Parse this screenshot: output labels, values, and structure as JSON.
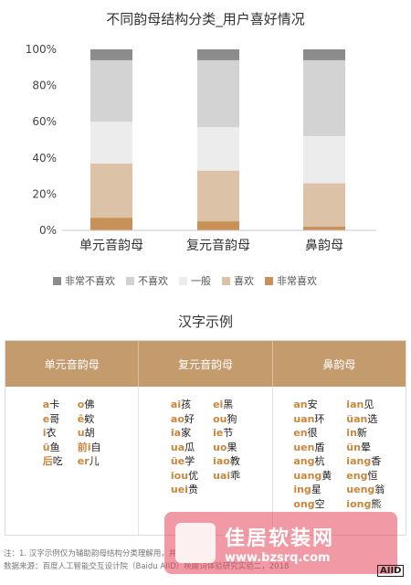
{
  "chart_data": {
    "type": "bar",
    "stacked": true,
    "title": "不同韵母结构分类_用户喜好情况",
    "categories": [
      "单元音韵母",
      "复元音韵母",
      "鼻韵母"
    ],
    "series": [
      {
        "name": "非常喜欢",
        "color": "#c79157",
        "values": [
          7,
          5,
          2
        ]
      },
      {
        "name": "喜欢",
        "color": "#dcc2a6",
        "values": [
          30,
          28,
          24
        ]
      },
      {
        "name": "一般",
        "color": "#ececec",
        "values": [
          23,
          24,
          26
        ]
      },
      {
        "name": "不喜欢",
        "color": "#d3d3d3",
        "values": [
          34,
          37,
          42
        ]
      },
      {
        "name": "非常不喜欢",
        "color": "#8c8c8c",
        "values": [
          6,
          6,
          6
        ]
      }
    ],
    "legend_order": [
      "非常不喜欢",
      "不喜欢",
      "一般",
      "喜欢",
      "非常喜欢"
    ],
    "yticks": [
      "0%",
      "20%",
      "40%",
      "60%",
      "80%",
      "100%"
    ],
    "ylim": [
      0,
      100
    ],
    "grid": false,
    "legend_position": "bottom"
  },
  "examples": {
    "title": "汉字示例",
    "headers": [
      "单元音韵母",
      "复元音韵母",
      "鼻韵母"
    ],
    "columns": [
      [
        [
          [
            "a",
            "卡"
          ],
          [
            "e",
            "哥"
          ],
          [
            "i",
            "衣"
          ],
          [
            "ü",
            "鱼"
          ],
          [
            "后",
            "吃"
          ]
        ],
        [
          [
            "o",
            "佛"
          ],
          [
            "ê",
            "欸"
          ],
          [
            "u",
            "胡"
          ],
          [
            "前i",
            "自"
          ],
          [
            "er",
            "儿"
          ]
        ]
      ],
      [
        [
          [
            "ai",
            "孩"
          ],
          [
            "ao",
            "好"
          ],
          [
            "ia",
            "家"
          ],
          [
            "ua",
            "瓜"
          ],
          [
            "üe",
            "学"
          ],
          [
            "iou",
            "优"
          ],
          [
            "uei",
            "贵"
          ]
        ],
        [
          [
            "ei",
            "黑"
          ],
          [
            "ou",
            "狗"
          ],
          [
            "ie",
            "节"
          ],
          [
            "uo",
            "果"
          ],
          [
            "iao",
            "教"
          ],
          [
            "uai",
            "乖"
          ]
        ]
      ],
      [
        [
          [
            "an",
            "安"
          ],
          [
            "uan",
            "环"
          ],
          [
            "en",
            "很"
          ],
          [
            "uen",
            "盾"
          ],
          [
            "ang",
            "杭"
          ],
          [
            "uang",
            "黄"
          ],
          [
            "ing",
            "星"
          ],
          [
            "ong",
            "空"
          ]
        ],
        [
          [
            "ian",
            "见"
          ],
          [
            "üan",
            "选"
          ],
          [
            "in",
            "新"
          ],
          [
            "ün",
            "晕"
          ],
          [
            "iang",
            "香"
          ],
          [
            "eng",
            "恒"
          ],
          [
            "ueng",
            "翁"
          ],
          [
            "iong",
            "熊"
          ]
        ]
      ]
    ]
  },
  "footer": {
    "note": "注：1. 汉字示例仅为辅助韵母结构分类理解用，并",
    "source": "数据来源：百度人工智能交互设计院（Baidu AIID）唤醒词体验研究实验二，2018"
  },
  "watermark": {
    "name": "佳居软装网",
    "url": "www.bzsrq.com",
    "badge": "AIID"
  }
}
